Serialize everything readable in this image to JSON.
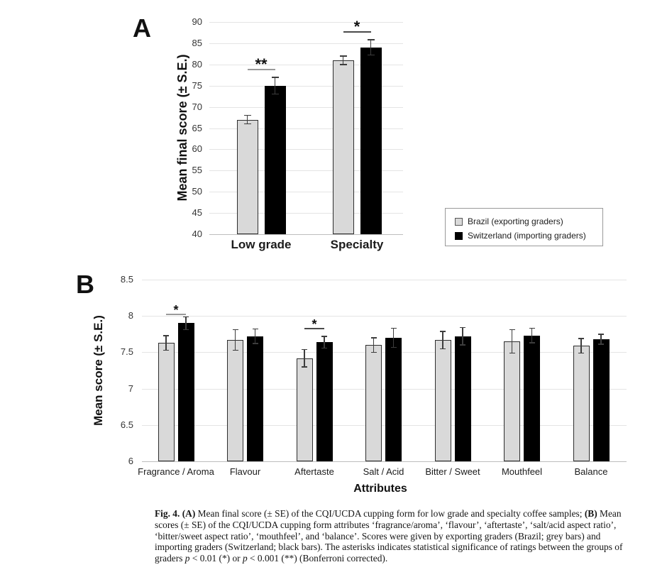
{
  "panel_a": {
    "label": "A",
    "ylabel": "Mean final score (± S.E.)",
    "categories_style": "bold"
  },
  "panel_b": {
    "label": "B",
    "ylabel": "Mean score (± S.E.)",
    "xlabel": "Attributes"
  },
  "legend": {
    "items": [
      {
        "label": "Brazil (exporting graders)",
        "color": "#d9d9d9",
        "swatch": "grey-square-icon"
      },
      {
        "label": "Switzerland (importing graders)",
        "color": "#000000",
        "swatch": "black-square-icon"
      }
    ]
  },
  "colors": {
    "grey_bar": "#d9d9d9",
    "grey_bar_border": "#2e2e2e",
    "black_bar": "#000000",
    "gridline": "#e4e4e4",
    "baseline": "#bdbdbd",
    "error_bar": "#3d3d3d"
  },
  "chart_data": [
    {
      "id": "A",
      "type": "bar",
      "title": "",
      "categories": [
        "Low grade",
        "Specialty"
      ],
      "series": [
        {
          "name": "Brazil (exporting graders)",
          "color": "#d9d9d9",
          "values": [
            67,
            81
          ],
          "errors": [
            1.0,
            1.0
          ]
        },
        {
          "name": "Switzerland (importing graders)",
          "color": "#000000",
          "values": [
            75,
            84
          ],
          "errors": [
            2.0,
            1.8
          ]
        }
      ],
      "xlabel": "",
      "ylabel": "Mean final score (± S.E.)",
      "ylim": [
        40,
        90
      ],
      "ytick_step": 5,
      "grid": true,
      "legend_position": "outside-right-bottom",
      "significance": [
        {
          "category": "Low grade",
          "label": "**",
          "y": 79.0,
          "line_color": "#9a9a9a"
        },
        {
          "category": "Specialty",
          "label": "*",
          "y": 87.8,
          "line_color": "#4a4a4a"
        }
      ]
    },
    {
      "id": "B",
      "type": "bar",
      "title": "",
      "categories": [
        "Fragrance / Aroma",
        "Flavour",
        "Aftertaste",
        "Salt / Acid",
        "Bitter / Sweet",
        "Mouthfeel",
        "Balance"
      ],
      "series": [
        {
          "name": "Brazil (exporting graders)",
          "color": "#d9d9d9",
          "values": [
            7.63,
            7.67,
            7.42,
            7.6,
            7.67,
            7.65,
            7.59
          ],
          "errors": [
            0.1,
            0.14,
            0.12,
            0.1,
            0.12,
            0.16,
            0.1
          ]
        },
        {
          "name": "Switzerland (importing graders)",
          "color": "#000000",
          "values": [
            7.9,
            7.72,
            7.64,
            7.7,
            7.72,
            7.73,
            7.68
          ],
          "errors": [
            0.09,
            0.1,
            0.08,
            0.13,
            0.12,
            0.1,
            0.07
          ]
        }
      ],
      "xlabel": "Attributes",
      "ylabel": "Mean score (± S.E.)",
      "ylim": [
        6,
        8.5
      ],
      "ytick_step": 0.5,
      "grid": true,
      "significance": [
        {
          "category": "Fragrance / Aroma",
          "label": "*",
          "y": 8.03,
          "line_color": "#9a9a9a"
        },
        {
          "category": "Aftertaste",
          "label": "*",
          "y": 7.84,
          "line_color": "#4a4a4a"
        }
      ]
    }
  ],
  "caption": {
    "segments": [
      {
        "t": "Fig. 4.",
        "b": true
      },
      {
        "t": "  "
      },
      {
        "t": "(A)",
        "b": true
      },
      {
        "t": " Mean final score (± SE) of the CQI/UCDA cupping form for low grade and specialty coffee samples; "
      },
      {
        "t": "(B)",
        "b": true
      },
      {
        "t": " Mean scores (± SE) of the CQI/UCDA cupping form attributes ‘fragrance/aroma’, ‘flavour’, ‘aftertaste’, ‘salt/acid aspect ratio’, ‘bitter/sweet aspect ratio’, ‘mouthfeel’, and ‘balance’. Scores were given by exporting graders (Brazil; grey bars) and importing graders (Switzerland; black bars). The asterisks indicates statistical significance of ratings between the groups of graders "
      },
      {
        "t": "p",
        "i": true
      },
      {
        "t": " < 0.01 (*) or "
      },
      {
        "t": "p",
        "i": true
      },
      {
        "t": " < 0.001 (**) (Bonferroni corrected)."
      }
    ]
  }
}
